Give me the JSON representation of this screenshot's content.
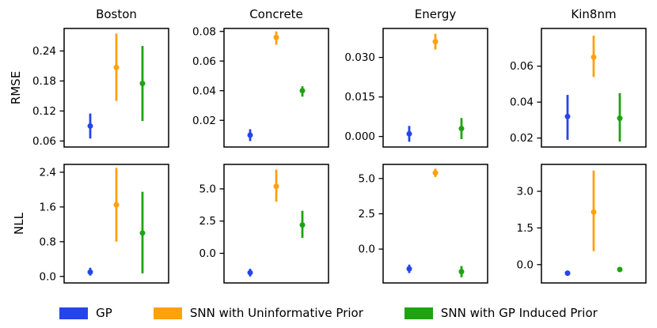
{
  "chart_data": {
    "type": "errorbar",
    "layout": {
      "rows": 2,
      "cols": 4,
      "legend_position": "bottom",
      "grid": false,
      "x_tick_labels": false
    },
    "row_labels": [
      "RMSE",
      "NLL"
    ],
    "column_titles": [
      "Boston",
      "Concrete",
      "Energy",
      "Kin8nm"
    ],
    "series": [
      {
        "name": "GP",
        "color": "#2545e8"
      },
      {
        "name": "SNN with Uninformative Prior",
        "color": "#ffa00e"
      },
      {
        "name": "SNN with GP Induced Prior",
        "color": "#1fa312"
      }
    ],
    "subplots": [
      {
        "metric": "RMSE",
        "dataset": "Boston",
        "ylim": [
          0.048,
          0.285
        ],
        "yticks": [
          {
            "value": 0.06,
            "label": "0.06"
          },
          {
            "value": 0.12,
            "label": "0.12"
          },
          {
            "value": 0.18,
            "label": "0.18"
          },
          {
            "value": 0.24,
            "label": "0.24"
          }
        ],
        "points": [
          {
            "series": "GP",
            "low": 0.065,
            "mid": 0.09,
            "high": 0.115
          },
          {
            "series": "SNN with Uninformative Prior",
            "low": 0.14,
            "mid": 0.207,
            "high": 0.275
          },
          {
            "series": "SNN with GP Induced Prior",
            "low": 0.1,
            "mid": 0.175,
            "high": 0.25
          }
        ]
      },
      {
        "metric": "RMSE",
        "dataset": "Concrete",
        "ylim": [
          0.002,
          0.082
        ],
        "yticks": [
          {
            "value": 0.02,
            "label": "0.02"
          },
          {
            "value": 0.04,
            "label": "0.04"
          },
          {
            "value": 0.06,
            "label": "0.06"
          },
          {
            "value": 0.08,
            "label": "0.08"
          }
        ],
        "points": [
          {
            "series": "GP",
            "low": 0.006,
            "mid": 0.01,
            "high": 0.014
          },
          {
            "series": "SNN with Uninformative Prior",
            "low": 0.071,
            "mid": 0.076,
            "high": 0.08
          },
          {
            "series": "SNN with GP Induced Prior",
            "low": 0.036,
            "mid": 0.04,
            "high": 0.043
          }
        ]
      },
      {
        "metric": "RMSE",
        "dataset": "Energy",
        "ylim": [
          -0.004,
          0.041
        ],
        "yticks": [
          {
            "value": 0.0,
            "label": "0.000"
          },
          {
            "value": 0.015,
            "label": "0.015"
          },
          {
            "value": 0.03,
            "label": "0.030"
          }
        ],
        "points": [
          {
            "series": "GP",
            "low": -0.002,
            "mid": 0.001,
            "high": 0.004
          },
          {
            "series": "SNN with Uninformative Prior",
            "low": 0.033,
            "mid": 0.036,
            "high": 0.039
          },
          {
            "series": "SNN with GP Induced Prior",
            "low": -0.001,
            "mid": 0.003,
            "high": 0.007
          }
        ]
      },
      {
        "metric": "RMSE",
        "dataset": "Kin8nm",
        "ylim": [
          0.015,
          0.081
        ],
        "yticks": [
          {
            "value": 0.02,
            "label": "0.02"
          },
          {
            "value": 0.04,
            "label": "0.04"
          },
          {
            "value": 0.06,
            "label": "0.06"
          }
        ],
        "points": [
          {
            "series": "GP",
            "low": 0.019,
            "mid": 0.032,
            "high": 0.044
          },
          {
            "series": "SNN with Uninformative Prior",
            "low": 0.054,
            "mid": 0.065,
            "high": 0.077
          },
          {
            "series": "SNN with GP Induced Prior",
            "low": 0.018,
            "mid": 0.031,
            "high": 0.045
          }
        ]
      },
      {
        "metric": "NLL",
        "dataset": "Boston",
        "ylim": [
          -0.15,
          2.58
        ],
        "yticks": [
          {
            "value": 0.0,
            "label": "0.0"
          },
          {
            "value": 0.8,
            "label": "0.8"
          },
          {
            "value": 1.6,
            "label": "1.6"
          },
          {
            "value": 2.4,
            "label": "2.4"
          }
        ],
        "points": [
          {
            "series": "GP",
            "low": 0.02,
            "mid": 0.1,
            "high": 0.2
          },
          {
            "series": "SNN with Uninformative Prior",
            "low": 0.8,
            "mid": 1.65,
            "high": 2.5
          },
          {
            "series": "SNN with GP Induced Prior",
            "low": 0.07,
            "mid": 1.0,
            "high": 1.95
          }
        ]
      },
      {
        "metric": "NLL",
        "dataset": "Concrete",
        "ylim": [
          -2.3,
          6.9
        ],
        "yticks": [
          {
            "value": 0.0,
            "label": "0.0"
          },
          {
            "value": 2.5,
            "label": "2.5"
          },
          {
            "value": 5.0,
            "label": "5.0"
          }
        ],
        "points": [
          {
            "series": "GP",
            "low": -1.8,
            "mid": -1.5,
            "high": -1.2
          },
          {
            "series": "SNN with Uninformative Prior",
            "low": 4.0,
            "mid": 5.2,
            "high": 6.5
          },
          {
            "series": "SNN with GP Induced Prior",
            "low": 1.2,
            "mid": 2.2,
            "high": 3.3
          }
        ]
      },
      {
        "metric": "NLL",
        "dataset": "Energy",
        "ylim": [
          -2.4,
          6.0
        ],
        "yticks": [
          {
            "value": 0.0,
            "label": "0.0"
          },
          {
            "value": 2.5,
            "label": "2.5"
          },
          {
            "value": 5.0,
            "label": "5.0"
          }
        ],
        "points": [
          {
            "series": "GP",
            "low": -1.7,
            "mid": -1.4,
            "high": -1.1
          },
          {
            "series": "SNN with Uninformative Prior",
            "low": 5.1,
            "mid": 5.4,
            "high": 5.7
          },
          {
            "series": "SNN with GP Induced Prior",
            "low": -2.0,
            "mid": -1.6,
            "high": -1.2
          }
        ]
      },
      {
        "metric": "NLL",
        "dataset": "Kin8nm",
        "ylim": [
          -0.75,
          4.1
        ],
        "yticks": [
          {
            "value": 0.0,
            "label": "0.0"
          },
          {
            "value": 1.5,
            "label": "1.5"
          },
          {
            "value": 3.0,
            "label": "3.0"
          }
        ],
        "points": [
          {
            "series": "GP",
            "low": -0.4,
            "mid": -0.35,
            "high": -0.3
          },
          {
            "series": "SNN with Uninformative Prior",
            "low": 0.55,
            "mid": 2.15,
            "high": 3.85
          },
          {
            "series": "SNN with GP Induced Prior",
            "low": -0.25,
            "mid": -0.2,
            "high": -0.15
          }
        ]
      }
    ]
  }
}
